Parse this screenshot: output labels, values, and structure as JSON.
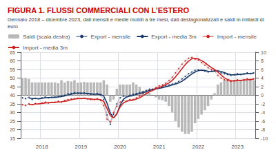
{
  "chart_data": {
    "type": "line",
    "title": "FIGURA 1. FLUSSI COMMERCIALI CON L’ESTERO",
    "subtitle": "Gennaio 2018 – dicembre 2023, dati mensili e medie mobili a tre mesi, dati destagionalizzati e saldi in miliardi di euro",
    "categories": [
      null,
      null,
      null,
      null,
      null,
      null,
      "2018",
      null,
      null,
      null,
      null,
      null,
      null,
      null,
      null,
      null,
      null,
      null,
      "2019",
      null,
      null,
      null,
      null,
      null,
      null,
      null,
      null,
      null,
      null,
      null,
      "2020",
      null,
      null,
      null,
      null,
      null,
      null,
      null,
      null,
      null,
      null,
      null,
      "2021",
      null,
      null,
      null,
      null,
      null,
      null,
      null,
      null,
      null,
      null,
      null,
      "2022",
      null,
      null,
      null,
      null,
      null,
      null,
      null,
      null,
      null,
      null,
      null,
      "2023",
      null,
      null,
      null,
      null,
      null
    ],
    "ylim": [
      15,
      65
    ],
    "yticks": [
      15,
      20,
      25,
      30,
      35,
      40,
      45,
      50,
      55,
      60,
      65
    ],
    "y2lim": [
      -10,
      10
    ],
    "y2ticks": [
      -10,
      -8,
      -6,
      -4,
      -2,
      0,
      2,
      4,
      6,
      8,
      10
    ],
    "grid": true,
    "legend": "upper left",
    "series": [
      {
        "name": "Saldi (scala destra)",
        "type": "bar",
        "axis": "y2",
        "color": "#b8b8b8",
        "values": [
          4.0,
          4.0,
          3.8,
          3.0,
          3.0,
          3.0,
          3.0,
          3.0,
          3.0,
          3.0,
          3.0,
          2.8,
          3.5,
          3.0,
          3.3,
          3.2,
          3.5,
          2.9,
          3.0,
          3.1,
          3.0,
          3.0,
          3.0,
          3.0,
          3.0,
          3.5,
          2.5,
          -1.5,
          -1.0,
          1.5,
          2.5,
          2.5,
          2.5,
          2.5,
          3.0,
          2.5,
          2.0,
          1.0,
          0.8,
          0.5,
          0.0,
          -0.5,
          -1.0,
          -1.2,
          -1.5,
          -2.5,
          -4.0,
          -6.0,
          -7.5,
          -8.5,
          -9.0,
          -9.0,
          -8.5,
          -6.5,
          -5.5,
          -4.5,
          -3.5,
          -2.5,
          -1.0,
          0.5,
          2.5,
          3.0,
          3.5,
          3.5,
          3.5,
          3.5,
          3.5,
          3.5,
          3.5,
          3.5,
          3.5,
          3.5
        ]
      },
      {
        "name": "Export - mensile",
        "type": "line",
        "color": "#1a3a6b",
        "marker": "circle",
        "values": [
          38.5,
          38.0,
          38.8,
          37.5,
          38.2,
          38.0,
          38.5,
          39.0,
          38.5,
          38.8,
          39.0,
          39.2,
          39.5,
          40.0,
          40.8,
          41.0,
          41.5,
          41.2,
          41.0,
          41.3,
          40.8,
          40.5,
          40.5,
          41.0,
          40.0,
          37.5,
          28.5,
          23.0,
          29.0,
          35.0,
          38.5,
          39.5,
          39.0,
          40.0,
          40.5,
          41.0,
          41.5,
          42.0,
          42.8,
          43.5,
          43.5,
          44.0,
          44.5,
          44.8,
          45.5,
          46.0,
          46.5,
          47.0,
          48.0,
          49.5,
          51.0,
          52.5,
          53.5,
          54.5,
          54.8,
          54.5,
          54.0,
          53.5,
          54.0,
          54.5,
          54.0,
          53.0,
          52.5,
          52.0,
          51.5,
          52.0,
          52.5,
          52.0,
          52.5,
          53.0,
          52.5,
          53.0
        ]
      },
      {
        "name": "Export - media 3m",
        "type": "line",
        "color": "#1a3a6b",
        "values": [
          null,
          null,
          38.433,
          38.1,
          38.167,
          37.9,
          38.233,
          38.5,
          38.667,
          38.767,
          38.767,
          39.0,
          39.233,
          39.567,
          40.1,
          40.6,
          41.1,
          41.233,
          41.233,
          41.167,
          41.033,
          40.867,
          40.6,
          40.667,
          40.5,
          39.5,
          35.333,
          29.667,
          26.833,
          29.0,
          34.167,
          37.667,
          39.0,
          39.5,
          39.833,
          40.5,
          41.0,
          41.5,
          42.1,
          42.767,
          43.267,
          43.667,
          44.0,
          44.433,
          44.933,
          45.433,
          46.0,
          46.5,
          47.167,
          48.167,
          49.5,
          51.0,
          52.333,
          53.5,
          54.267,
          54.6,
          54.433,
          54.0,
          53.833,
          54.0,
          54.167,
          53.833,
          53.167,
          52.5,
          52.0,
          51.833,
          52.0,
          52.167,
          52.333,
          52.5,
          52.667,
          52.833
        ]
      },
      {
        "name": "Import - mensile",
        "type": "line",
        "color": "#cc2222",
        "marker": "circle",
        "values": [
          34.5,
          34.0,
          35.0,
          34.5,
          35.2,
          35.0,
          35.5,
          36.0,
          35.5,
          35.8,
          36.0,
          36.5,
          36.0,
          37.0,
          37.5,
          37.8,
          38.0,
          38.3,
          38.0,
          38.2,
          37.8,
          37.5,
          37.5,
          38.0,
          37.0,
          34.0,
          26.0,
          24.5,
          30.0,
          33.5,
          36.0,
          37.0,
          36.5,
          37.5,
          37.5,
          38.5,
          39.5,
          41.0,
          42.0,
          43.0,
          43.5,
          44.5,
          45.5,
          46.0,
          47.0,
          48.5,
          50.5,
          53.0,
          55.5,
          58.0,
          60.0,
          61.5,
          62.0,
          61.0,
          60.5,
          59.0,
          57.5,
          56.0,
          55.0,
          54.0,
          51.5,
          50.0,
          49.0,
          48.5,
          48.0,
          48.5,
          49.0,
          48.5,
          49.0,
          49.5,
          49.0,
          49.5
        ]
      },
      {
        "name": "Import - media 3m",
        "type": "line",
        "color": "#cc2222",
        "values": [
          null,
          null,
          34.5,
          34.5,
          34.9,
          34.9,
          35.233,
          35.5,
          35.667,
          35.767,
          35.767,
          36.1,
          36.167,
          36.5,
          36.833,
          37.433,
          37.767,
          38.033,
          38.1,
          38.167,
          38.0,
          37.833,
          37.6,
          37.667,
          37.5,
          36.333,
          32.333,
          28.167,
          26.833,
          29.333,
          33.167,
          35.5,
          36.5,
          37.0,
          37.167,
          37.833,
          38.5,
          39.667,
          40.833,
          42.0,
          42.833,
          43.667,
          44.5,
          45.333,
          46.167,
          47.167,
          48.667,
          50.667,
          53.0,
          55.5,
          57.833,
          59.833,
          61.167,
          61.5,
          61.167,
          60.167,
          59.0,
          57.5,
          56.167,
          55.0,
          53.5,
          51.833,
          50.167,
          49.167,
          48.5,
          48.333,
          48.5,
          48.667,
          48.833,
          49.0,
          49.167,
          49.333
        ]
      }
    ]
  }
}
